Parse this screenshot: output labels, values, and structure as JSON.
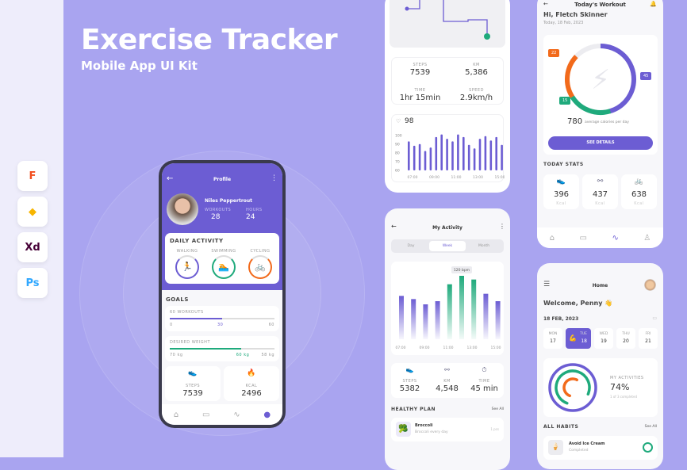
{
  "hero": {
    "title": "Exercise Tracker",
    "subtitle": "Mobile App UI Kit"
  },
  "tools": [
    {
      "label": "F",
      "name": "figma-icon",
      "color": "#f24e1e"
    },
    {
      "label": "◆",
      "name": "sketch-icon",
      "color": "#f7b500"
    },
    {
      "label": "Xd",
      "name": "xd-icon",
      "color": "#470137"
    },
    {
      "label": "Ps",
      "name": "photoshop-icon",
      "color": "#31a8ff"
    }
  ],
  "colors": {
    "primary": "#6c5dd3",
    "green": "#1faa7c",
    "orange": "#f26a1b",
    "bg": "#a9a4f0"
  },
  "profile": {
    "title": "Profile",
    "name": "Niles Peppertrout",
    "workouts_label": "WORKOUTS",
    "workouts": "28",
    "hours_label": "HOURS",
    "hours": "24",
    "daily_activity": "DAILY ACTIVITY",
    "activities": [
      {
        "label": "WALKING",
        "color": "#6c5dd3",
        "icon": "🏃"
      },
      {
        "label": "SWIMMING",
        "color": "#1faa7c",
        "icon": "🏊"
      },
      {
        "label": "CYCLING",
        "color": "#f26a1b",
        "icon": "🚲"
      }
    ],
    "goals": "GOALS",
    "goal1": {
      "label": "60 WORKOUTS",
      "min": "0",
      "mid": "30",
      "max": "60",
      "progress": 0.5
    },
    "goal2": {
      "label": "DESIRED WEIGHT",
      "min": "70 kg",
      "mid": "60 kg",
      "max": "58 kg",
      "progress": 0.68
    },
    "steps_label": "STEPS",
    "steps": "7539",
    "kcal_label": "KCAL",
    "kcal": "2496"
  },
  "map": {
    "steps_label": "STEPS",
    "steps": "7539",
    "km_label": "KM",
    "km": "5,386",
    "time_label": "TIME",
    "time": "1hr 15min",
    "speed_label": "SPEED",
    "speed": "2.9km/h",
    "heart": "98"
  },
  "chart_data": [
    {
      "type": "bar",
      "yticks": [
        "100",
        "90",
        "80",
        "70",
        "60"
      ],
      "ylim": [
        60,
        100
      ],
      "xticks": [
        "07:00",
        "09:00",
        "11:00",
        "13:00",
        "15:00"
      ],
      "values": [
        86,
        81,
        83,
        75,
        79,
        91,
        94,
        89,
        86,
        94,
        91,
        82,
        78,
        89,
        92,
        87,
        91,
        82
      ],
      "color": "#6c5dd3"
    },
    {
      "type": "bar",
      "annotation": "120 bpm",
      "xticks": [
        "07:00",
        "09:00",
        "11:00",
        "13:00",
        "15:00"
      ],
      "values": [
        82,
        76,
        66,
        72,
        104,
        120,
        113,
        86,
        72
      ],
      "highlight": [
        4,
        5,
        6
      ]
    }
  ],
  "workout": {
    "title": "Today's Workout",
    "greeting": "Hi, Fletch Skinner",
    "date": "Today, 18 Feb, 2023",
    "seg_orange": "22",
    "seg_purple": "45",
    "seg_green": "15",
    "calories": "780",
    "calories_label": "average calories per day",
    "button": "SEE DETAILS",
    "today_stats": "TODAY STATS",
    "stats": [
      {
        "value": "396",
        "unit": "Kcal"
      },
      {
        "value": "437",
        "unit": "Kcal"
      },
      {
        "value": "638",
        "unit": "Kcal"
      }
    ]
  },
  "activity": {
    "title": "My Activity",
    "tabs": [
      "Day",
      "Week",
      "Month"
    ],
    "steps_label": "STEPS",
    "steps": "5382",
    "km_label": "KM",
    "km": "4,548",
    "time_label": "TIME",
    "time": "45 min",
    "plan": "HEALTHY PLAN",
    "see_all": "See All",
    "item": {
      "title": "Broccoli",
      "sub": "Broccoli every day",
      "meta": "1 pcs"
    }
  },
  "home": {
    "title": "Home",
    "welcome": "Welcome, Penny 👋",
    "date": "18 FEB, 2023",
    "days": [
      {
        "d": "MON",
        "n": "17"
      },
      {
        "d": "TUE",
        "n": "18"
      },
      {
        "d": "WED",
        "n": "19"
      },
      {
        "d": "THU",
        "n": "20"
      },
      {
        "d": "FRI",
        "n": "21"
      }
    ],
    "act_label": "MY ACTIVITIES",
    "act_pct": "74%",
    "act_sub": "1 of 3 completed",
    "habits": "ALL HABITS",
    "see_all": "See All",
    "habit": {
      "title": "Avoid Ice Cream",
      "sub": "Completed"
    }
  }
}
